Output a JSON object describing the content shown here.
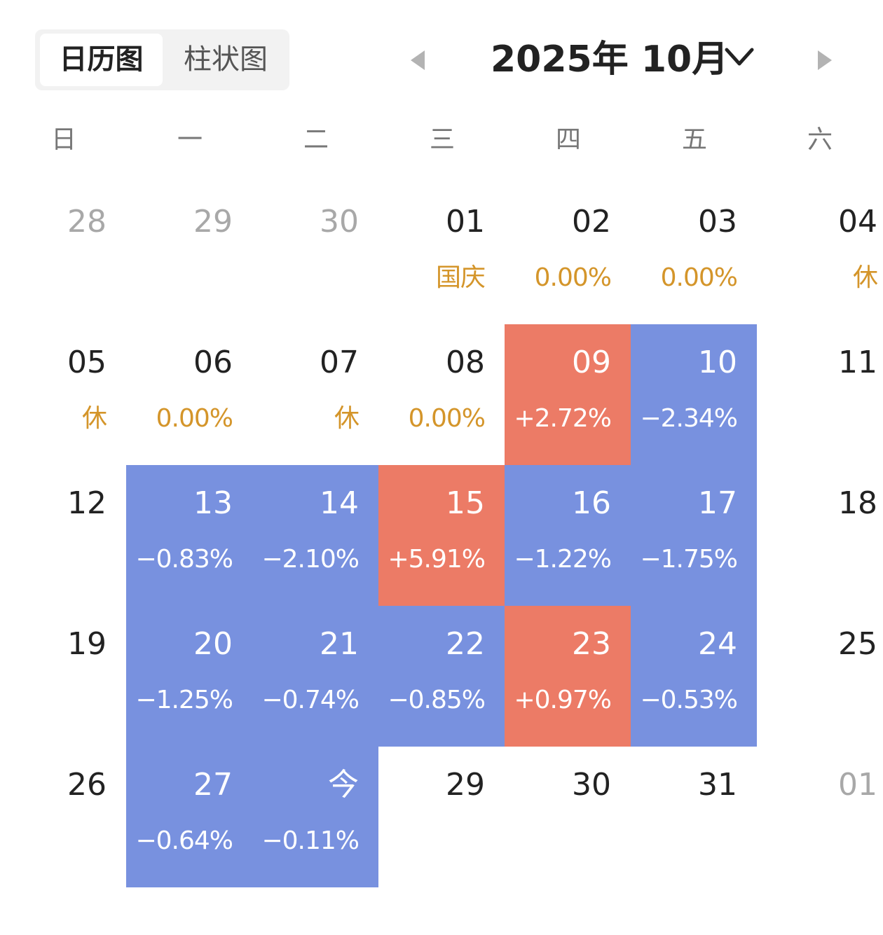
{
  "header": {
    "tabs": [
      "日历图",
      "柱状图"
    ],
    "month_title": "2025年 10月",
    "prev_icon": "triangle-left-icon",
    "next_icon": "triangle-right-icon",
    "dropdown_icon": "chevron-down-icon"
  },
  "weekdays": [
    "日",
    "一",
    "二",
    "三",
    "四",
    "五",
    "六"
  ],
  "colors": {
    "up": "#ec7b66",
    "down": "#7891df",
    "label": "#d4952a",
    "dim": "#a8a8a8"
  },
  "chart_data": {
    "type": "heatmap",
    "title": "2025年 10月",
    "weekdays": [
      "日",
      "一",
      "二",
      "三",
      "四",
      "五",
      "六"
    ],
    "weeks": [
      [
        {
          "day": "28",
          "sub": "",
          "state": "dim"
        },
        {
          "day": "29",
          "sub": "",
          "state": "dim"
        },
        {
          "day": "30",
          "sub": "",
          "state": "dim"
        },
        {
          "day": "01",
          "sub": "国庆",
          "state": "label"
        },
        {
          "day": "02",
          "sub": "0.00%",
          "state": "label"
        },
        {
          "day": "03",
          "sub": "0.00%",
          "state": "label"
        },
        {
          "day": "04",
          "sub": "休",
          "state": "label"
        }
      ],
      [
        {
          "day": "05",
          "sub": "休",
          "state": "label"
        },
        {
          "day": "06",
          "sub": "0.00%",
          "state": "label"
        },
        {
          "day": "07",
          "sub": "休",
          "state": "label"
        },
        {
          "day": "08",
          "sub": "0.00%",
          "state": "label"
        },
        {
          "day": "09",
          "sub": "+2.72%",
          "state": "up",
          "change": 2.72
        },
        {
          "day": "10",
          "sub": "−2.34%",
          "state": "down",
          "change": -2.34
        },
        {
          "day": "11",
          "sub": "",
          "state": "normal"
        }
      ],
      [
        {
          "day": "12",
          "sub": "",
          "state": "normal"
        },
        {
          "day": "13",
          "sub": "−0.83%",
          "state": "down",
          "change": -0.83
        },
        {
          "day": "14",
          "sub": "−2.10%",
          "state": "down",
          "change": -2.1
        },
        {
          "day": "15",
          "sub": "+5.91%",
          "state": "up",
          "change": 5.91
        },
        {
          "day": "16",
          "sub": "−1.22%",
          "state": "down",
          "change": -1.22
        },
        {
          "day": "17",
          "sub": "−1.75%",
          "state": "down",
          "change": -1.75
        },
        {
          "day": "18",
          "sub": "",
          "state": "normal"
        }
      ],
      [
        {
          "day": "19",
          "sub": "",
          "state": "normal"
        },
        {
          "day": "20",
          "sub": "−1.25%",
          "state": "down",
          "change": -1.25
        },
        {
          "day": "21",
          "sub": "−0.74%",
          "state": "down",
          "change": -0.74
        },
        {
          "day": "22",
          "sub": "−0.85%",
          "state": "down",
          "change": -0.85
        },
        {
          "day": "23",
          "sub": "+0.97%",
          "state": "up",
          "change": 0.97
        },
        {
          "day": "24",
          "sub": "−0.53%",
          "state": "down",
          "change": -0.53
        },
        {
          "day": "25",
          "sub": "",
          "state": "normal"
        }
      ],
      [
        {
          "day": "26",
          "sub": "",
          "state": "normal"
        },
        {
          "day": "27",
          "sub": "−0.64%",
          "state": "down",
          "change": -0.64
        },
        {
          "day": "今",
          "sub": "−0.11%",
          "state": "down",
          "change": -0.11
        },
        {
          "day": "29",
          "sub": "",
          "state": "normal"
        },
        {
          "day": "30",
          "sub": "",
          "state": "normal"
        },
        {
          "day": "31",
          "sub": "",
          "state": "normal"
        },
        {
          "day": "01",
          "sub": "",
          "state": "dim"
        }
      ]
    ]
  }
}
